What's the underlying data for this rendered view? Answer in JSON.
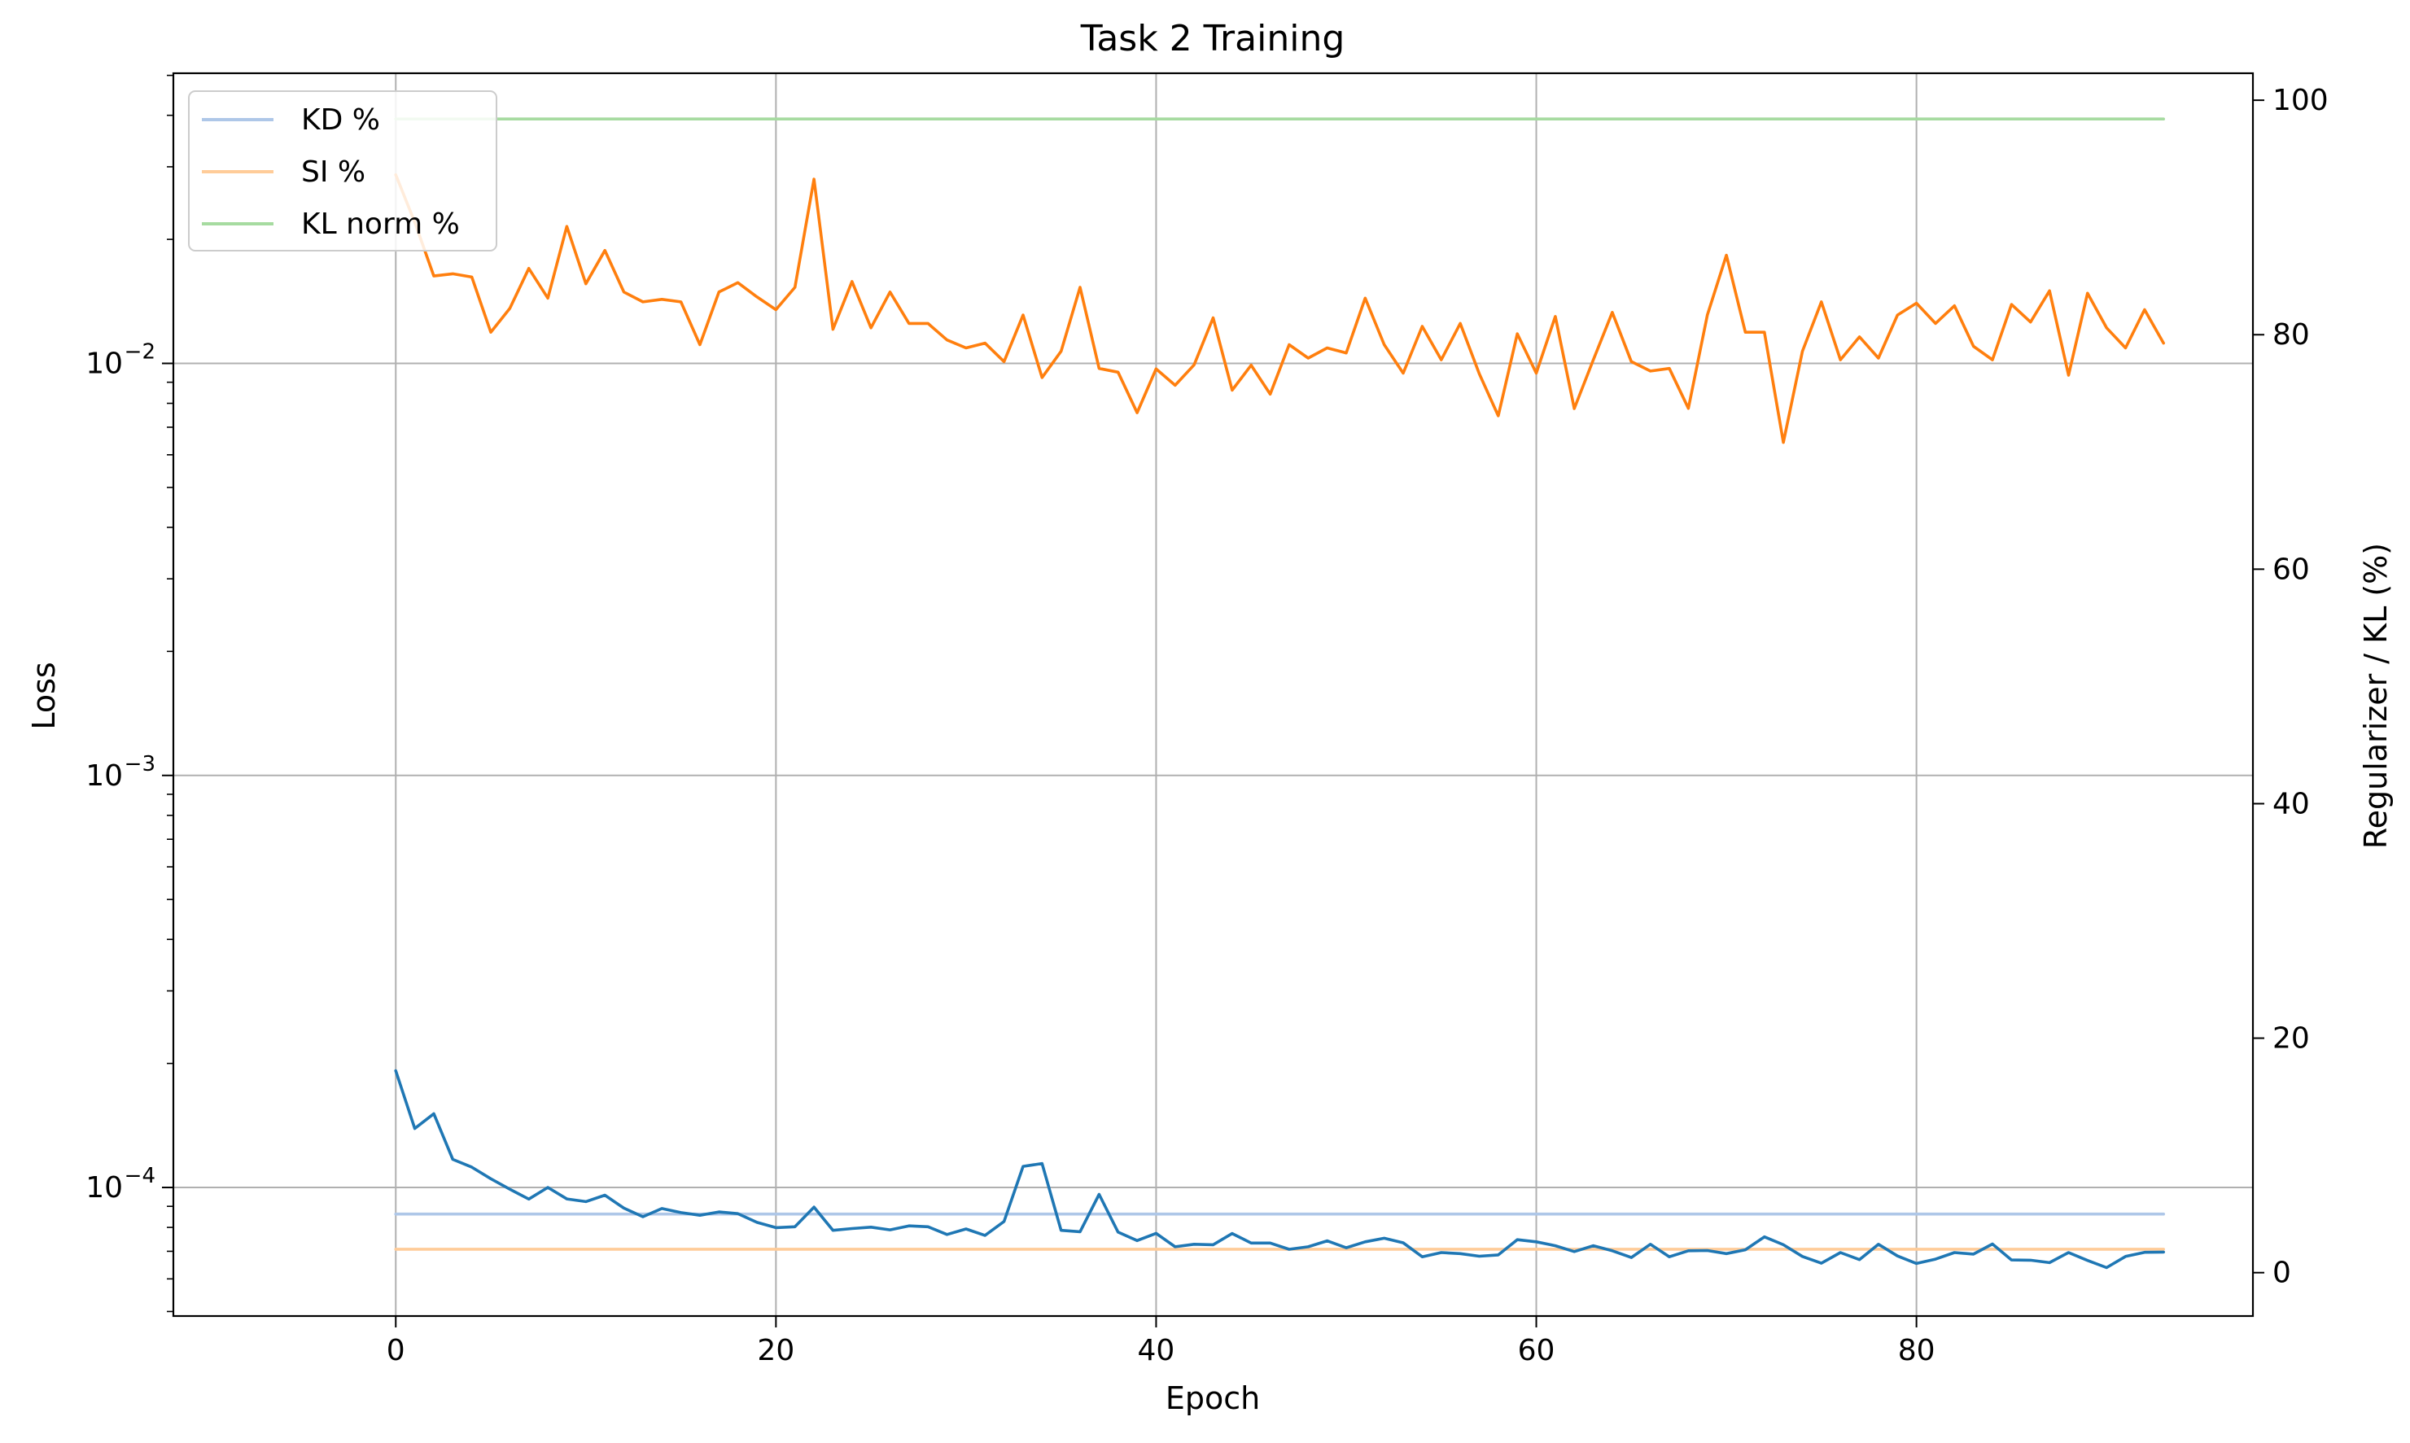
{
  "chart_data": {
    "type": "line",
    "title": "Task 2 Training",
    "xlabel": "Epoch",
    "ylabel": "Loss",
    "ylabel_right": "Regularizer / KL (%)",
    "xlim": [
      -11.7,
      97.7
    ],
    "ylim_log": [
      4.875e-05,
      0.0506
    ],
    "ylim_right": [
      -3.7,
      102.3
    ],
    "yscale": "log",
    "grid": true,
    "legend_position": "top-left",
    "x_ticks": [
      0,
      20,
      40,
      60,
      80
    ],
    "x_tick_labels": [
      "0",
      "20",
      "40",
      "60",
      "80"
    ],
    "y_ticks_major": [
      0.0001,
      0.001,
      0.01
    ],
    "y_tick_labels": [
      {
        "base": "10",
        "exp": "−4"
      },
      {
        "base": "10",
        "exp": "−3"
      },
      {
        "base": "10",
        "exp": "−2"
      }
    ],
    "y_right_ticks": [
      0,
      20,
      40,
      60,
      80,
      100
    ],
    "y_right_tick_labels": [
      "0",
      "20",
      "40",
      "60",
      "80",
      "100"
    ],
    "x": [
      0,
      1,
      2,
      3,
      4,
      5,
      6,
      7,
      8,
      9,
      10,
      11,
      12,
      13,
      14,
      15,
      16,
      17,
      18,
      19,
      20,
      21,
      22,
      23,
      24,
      25,
      26,
      27,
      28,
      29,
      30,
      31,
      32,
      33,
      34,
      35,
      36,
      37,
      38,
      39,
      40,
      41,
      42,
      43,
      44,
      45,
      46,
      47,
      48,
      49,
      50,
      51,
      52,
      53,
      54,
      55,
      56,
      57,
      58,
      59,
      60,
      61,
      62,
      63,
      64,
      65,
      66,
      67,
      68,
      69,
      70,
      71,
      72,
      73,
      74,
      75,
      76,
      77,
      78,
      79,
      80,
      81,
      82,
      83,
      84,
      85,
      86,
      87,
      88,
      89,
      90,
      91,
      92,
      93
    ],
    "series": [
      {
        "axis": "left",
        "color": "#1f77b4",
        "values": [
          0.000192,
          0.000139,
          0.000151,
          0.000117,
          0.000112,
          0.000105,
          9.9e-05,
          9.37e-05,
          0.0001,
          9.38e-05,
          9.24e-05,
          9.58e-05,
          8.91e-05,
          8.49e-05,
          8.89e-05,
          8.69e-05,
          8.56e-05,
          8.72e-05,
          8.64e-05,
          8.23e-05,
          7.99e-05,
          8.03e-05,
          8.96e-05,
          7.87e-05,
          7.95e-05,
          8.01e-05,
          7.89e-05,
          8.07e-05,
          8.03e-05,
          7.69e-05,
          7.93e-05,
          7.65e-05,
          8.27e-05,
          0.0001125,
          0.0001143,
          7.87e-05,
          7.81e-05,
          9.62e-05,
          7.79e-05,
          7.43e-05,
          7.74e-05,
          7.18e-05,
          7.28e-05,
          7.26e-05,
          7.73e-05,
          7.33e-05,
          7.33e-05,
          7.08e-05,
          7.18e-05,
          7.42e-05,
          7.14e-05,
          7.38e-05,
          7.53e-05,
          7.34e-05,
          6.79e-05,
          6.95e-05,
          6.91e-05,
          6.81e-05,
          6.86e-05,
          7.47e-05,
          7.38e-05,
          7.22e-05,
          6.99e-05,
          7.22e-05,
          7.02e-05,
          6.76e-05,
          7.28e-05,
          6.79e-05,
          7.02e-05,
          7.03e-05,
          6.91e-05,
          7.06e-05,
          7.59e-05,
          7.26e-05,
          6.8e-05,
          6.55e-05,
          6.95e-05,
          6.68e-05,
          7.28e-05,
          6.82e-05,
          6.54e-05,
          6.7e-05,
          6.95e-05,
          6.89e-05,
          7.29e-05,
          6.67e-05,
          6.66e-05,
          6.57e-05,
          6.95e-05,
          6.65e-05,
          6.39e-05,
          6.8e-05,
          6.96e-05,
          6.97e-05
        ]
      },
      {
        "axis": "left",
        "color": "#ff7f0e",
        "values": [
          0.0287,
          0.022,
          0.0163,
          0.0165,
          0.0162,
          0.0119,
          0.0136,
          0.017,
          0.0144,
          0.0215,
          0.0156,
          0.0188,
          0.0149,
          0.0141,
          0.0143,
          0.0141,
          0.0111,
          0.0149,
          0.0157,
          0.0145,
          0.0135,
          0.0153,
          0.028,
          0.0121,
          0.0158,
          0.0122,
          0.0149,
          0.0125,
          0.0125,
          0.0114,
          0.0109,
          0.0112,
          0.0101,
          0.0131,
          0.00924,
          0.0107,
          0.0153,
          0.00972,
          0.00952,
          0.00759,
          0.0097,
          0.00885,
          0.00992,
          0.0129,
          0.00861,
          0.0099,
          0.00842,
          0.0111,
          0.0103,
          0.0109,
          0.0106,
          0.0144,
          0.0111,
          0.00947,
          0.0123,
          0.0102,
          0.0125,
          0.00944,
          0.00746,
          0.0118,
          0.00947,
          0.013,
          0.00777,
          0.0102,
          0.0133,
          0.0101,
          0.00958,
          0.00972,
          0.00778,
          0.0131,
          0.0183,
          0.0119,
          0.0119,
          0.00643,
          0.0107,
          0.0141,
          0.0102,
          0.0116,
          0.0103,
          0.0131,
          0.014,
          0.0125,
          0.0138,
          0.011,
          0.0102,
          0.0139,
          0.0126,
          0.015,
          0.00936,
          0.0148,
          0.0122,
          0.0109,
          0.0135,
          0.0112
        ]
      },
      {
        "name": "KD %",
        "axis": "right",
        "color": "#aec7e8",
        "values": [
          5.0,
          5.0,
          5.0,
          5.0,
          5.0,
          5.0,
          5.0,
          5.0,
          5.0,
          5.0,
          5.0,
          5.0,
          5.0,
          5.0,
          5.0,
          5.0,
          5.0,
          5.0,
          5.0,
          5.0,
          5.0,
          5.0,
          5.0,
          5.0,
          5.0,
          5.0,
          5.0,
          5.0,
          5.0,
          5.0,
          5.0,
          5.0,
          5.0,
          5.0,
          5.0,
          5.0,
          5.0,
          5.0,
          5.0,
          5.0,
          5.0,
          5.0,
          5.0,
          5.0,
          5.0,
          5.0,
          5.0,
          5.0,
          5.0,
          5.0,
          5.0,
          5.0,
          5.0,
          5.0,
          5.0,
          5.0,
          5.0,
          5.0,
          5.0,
          5.0,
          5.0,
          5.0,
          5.0,
          5.0,
          5.0,
          5.0,
          5.0,
          5.0,
          5.0,
          5.0,
          5.0,
          5.0,
          5.0,
          5.0,
          5.0,
          5.0,
          5.0,
          5.0,
          5.0,
          5.0,
          5.0,
          5.0,
          5.0,
          5.0,
          5.0,
          5.0,
          5.0,
          5.0,
          5.0,
          5.0,
          5.0,
          5.0,
          5.0,
          5.0
        ]
      },
      {
        "name": "SI %",
        "axis": "right",
        "color": "#ffcc99",
        "values": [
          2.0,
          2.0,
          2.0,
          2.0,
          2.0,
          2.0,
          2.0,
          2.0,
          2.0,
          2.0,
          2.0,
          2.0,
          2.0,
          2.0,
          2.0,
          2.0,
          2.0,
          2.0,
          2.0,
          2.0,
          2.0,
          2.0,
          2.0,
          2.0,
          2.0,
          2.0,
          2.0,
          2.0,
          2.0,
          2.0,
          2.0,
          2.0,
          2.0,
          2.0,
          2.0,
          2.0,
          2.0,
          2.0,
          2.0,
          2.0,
          2.0,
          2.0,
          2.0,
          2.0,
          2.0,
          2.0,
          2.0,
          2.0,
          2.0,
          2.0,
          2.0,
          2.0,
          2.0,
          2.0,
          2.0,
          2.0,
          2.0,
          2.0,
          2.0,
          2.0,
          2.0,
          2.0,
          2.0,
          2.0,
          2.0,
          2.0,
          2.0,
          2.0,
          2.0,
          2.0,
          2.0,
          2.0,
          2.0,
          2.0,
          2.0,
          2.0,
          2.0,
          2.0,
          2.0,
          2.0,
          2.0,
          2.0,
          2.0,
          2.0,
          2.0,
          2.0,
          2.0,
          2.0,
          2.0,
          2.0,
          2.0,
          2.0,
          2.0,
          2.0
        ]
      },
      {
        "name": "KL norm %",
        "axis": "right",
        "color": "#a6dba0",
        "values": [
          98.4,
          98.4,
          98.4,
          98.4,
          98.4,
          98.4,
          98.4,
          98.4,
          98.4,
          98.4,
          98.4,
          98.4,
          98.4,
          98.4,
          98.4,
          98.4,
          98.4,
          98.4,
          98.4,
          98.4,
          98.4,
          98.4,
          98.4,
          98.4,
          98.4,
          98.4,
          98.4,
          98.4,
          98.4,
          98.4,
          98.4,
          98.4,
          98.4,
          98.4,
          98.4,
          98.4,
          98.4,
          98.4,
          98.4,
          98.4,
          98.4,
          98.4,
          98.4,
          98.4,
          98.4,
          98.4,
          98.4,
          98.4,
          98.4,
          98.4,
          98.4,
          98.4,
          98.4,
          98.4,
          98.4,
          98.4,
          98.4,
          98.4,
          98.4,
          98.4,
          98.4,
          98.4,
          98.4,
          98.4,
          98.4,
          98.4,
          98.4,
          98.4,
          98.4,
          98.4,
          98.4,
          98.4,
          98.4,
          98.4,
          98.4,
          98.4,
          98.4,
          98.4,
          98.4,
          98.4,
          98.4,
          98.4,
          98.4,
          98.4,
          98.4,
          98.4,
          98.4,
          98.4,
          98.4,
          98.4,
          98.4,
          98.4,
          98.4,
          98.4
        ]
      }
    ]
  }
}
